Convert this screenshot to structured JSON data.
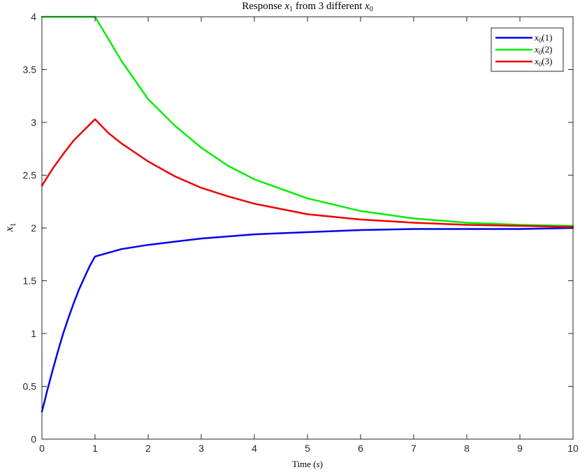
{
  "chart_data": {
    "type": "line",
    "title": {
      "prefix": "Response ",
      "var1": "x",
      "sub1": "1",
      "middle": " from 3 different ",
      "var2": "x",
      "sub2": "0"
    },
    "xlabel": {
      "text": "Time (",
      "var": "s",
      "suffix": ")"
    },
    "ylabel": {
      "var": "x",
      "sub": "1"
    },
    "xlim": [
      0,
      10
    ],
    "ylim": [
      0,
      4
    ],
    "xticks": [
      "0",
      "1",
      "2",
      "3",
      "4",
      "5",
      "6",
      "7",
      "8",
      "9",
      "10"
    ],
    "yticks": [
      "0",
      "0.5",
      "1",
      "1.5",
      "2",
      "2.5",
      "3",
      "3.5",
      "4"
    ],
    "grid": false,
    "legend_position": "top-right",
    "series": [
      {
        "legend": {
          "var": "x",
          "sub": "0",
          "arg": "(1)"
        },
        "color": "#0000ee",
        "x": [
          0,
          0.1,
          0.2,
          0.3,
          0.4,
          0.5,
          0.6,
          0.7,
          0.8,
          0.9,
          1,
          1.5,
          2,
          2.5,
          3,
          3.5,
          4,
          5,
          6,
          7,
          8,
          9,
          10
        ],
        "y": [
          0.26,
          0.46,
          0.65,
          0.83,
          1.0,
          1.15,
          1.29,
          1.42,
          1.53,
          1.64,
          1.73,
          1.8,
          1.84,
          1.87,
          1.9,
          1.92,
          1.94,
          1.96,
          1.98,
          1.99,
          1.99,
          1.99,
          2.0
        ]
      },
      {
        "legend": {
          "var": "x",
          "sub": "0",
          "arg": "(2)"
        },
        "color": "#00ee00",
        "x": [
          0,
          1,
          1.5,
          2,
          2.5,
          3,
          3.5,
          4,
          5,
          6,
          7,
          8,
          9,
          10
        ],
        "y": [
          4.0,
          4.0,
          3.58,
          3.22,
          2.97,
          2.76,
          2.59,
          2.46,
          2.28,
          2.16,
          2.09,
          2.05,
          2.03,
          2.02
        ]
      },
      {
        "legend": {
          "var": "x",
          "sub": "0",
          "arg": "(3)"
        },
        "color": "#ee0000",
        "x": [
          0,
          0.2,
          0.4,
          0.6,
          0.8,
          1,
          1.25,
          1.5,
          2,
          2.5,
          3,
          3.5,
          4,
          5,
          6,
          7,
          8,
          9,
          10
        ],
        "y": [
          2.4,
          2.56,
          2.7,
          2.83,
          2.93,
          3.03,
          2.9,
          2.8,
          2.63,
          2.49,
          2.38,
          2.3,
          2.23,
          2.13,
          2.08,
          2.05,
          2.03,
          2.02,
          2.01
        ]
      }
    ]
  }
}
